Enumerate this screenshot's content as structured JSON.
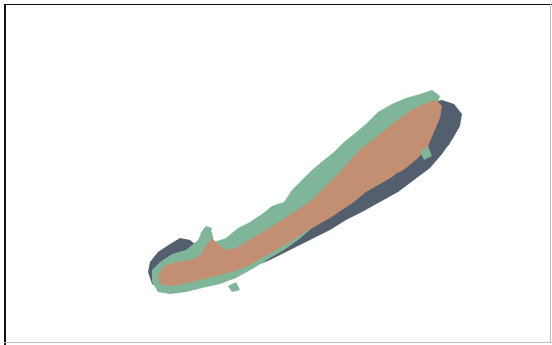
{
  "viewer": {
    "background_color": "#ffffff",
    "border_color": "#111111"
  },
  "segmentation": {
    "regions": [
      {
        "name": "outer-region",
        "color": "#535f6e"
      },
      {
        "name": "middle-region",
        "color": "#7fb598"
      },
      {
        "name": "inner-region",
        "color": "#c38f73"
      }
    ]
  }
}
